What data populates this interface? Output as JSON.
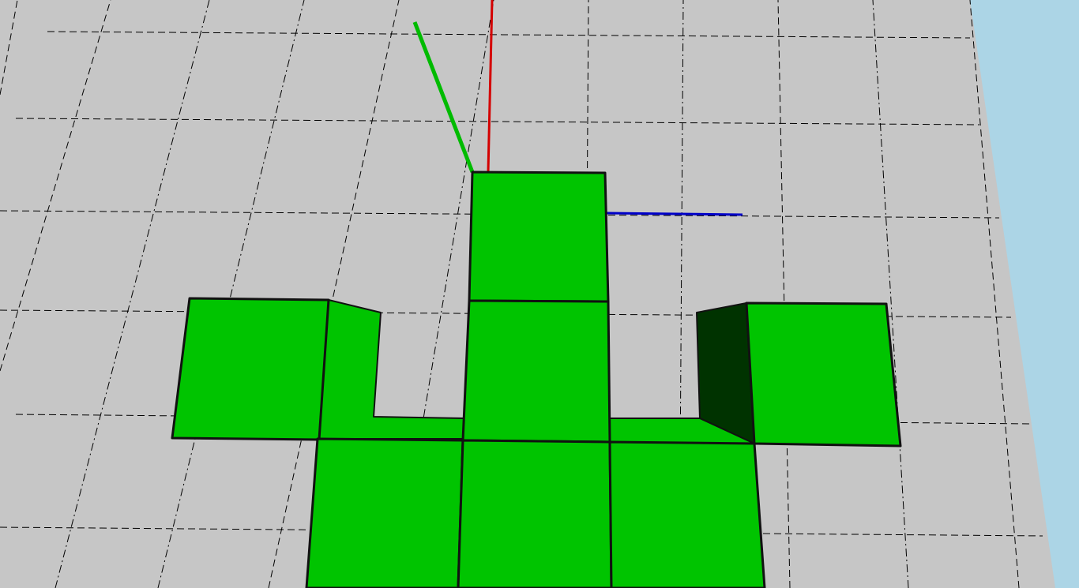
{
  "scene": {
    "view": "3d-viewport",
    "background_color": "#c6c6c6",
    "sky_color": "#acd5e6",
    "grid_color": "#000000",
    "axes": {
      "x_color": "#d40000",
      "y_color": "#00bb00",
      "z_color": "#0000c8"
    },
    "cube_colors": {
      "front": "#00c400",
      "side_dark": "#003300"
    }
  }
}
